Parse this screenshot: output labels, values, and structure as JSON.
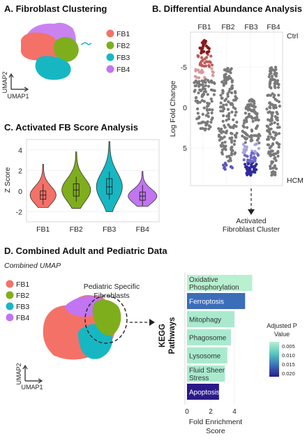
{
  "colors": {
    "fb1": "#f47168",
    "fb2": "#7fae1d",
    "fb3": "#16b7c2",
    "fb4": "#c275f0"
  },
  "panelA": {
    "title": "A. Fibroblast Clustering",
    "legend": [
      "FB1",
      "FB2",
      "FB3",
      "FB4"
    ],
    "axis_x": "UMAP1",
    "axis_y": "UMAP2"
  },
  "panelB": {
    "title": "B. Differential Abundance Analysis",
    "clusters": [
      "FB1",
      "FB2",
      "FB3",
      "FB4"
    ],
    "ylabel": "Log Fold Change",
    "yticks": [
      "-5",
      "0",
      "5"
    ],
    "top_label": "Ctrl",
    "bottom_label": "HCM",
    "annotation_line1": "Activated",
    "annotation_line2": "Fibroblast Cluster"
  },
  "panelC": {
    "title": "C. Activated FB Score Analysis",
    "ylabel": "Z Score",
    "yticks": [
      "4",
      "2",
      "0",
      "-2"
    ],
    "categories": [
      "FB1",
      "FB2",
      "FB3",
      "FB4"
    ]
  },
  "panelD": {
    "title": "D. Combined Adult and Pediatric Data",
    "subtitle": "Combined UMAP",
    "legend": [
      "FB1",
      "FB2",
      "FB3",
      "FB4"
    ],
    "axis_x": "UMAP1",
    "axis_y": "UMAP2",
    "callout_line1": "Pediatric Specific",
    "callout_line2": "Fibroblasts",
    "kegg_line1": "KEGG",
    "kegg_line2": "Pathways",
    "xlabel_line1": "Fold Enrichment",
    "xlabel_line2": "Score",
    "xticks": [
      "0",
      "2",
      "4"
    ],
    "colorbar_title_line1": "Adjusted P",
    "colorbar_title_line2": "Value",
    "colorbar_ticks": [
      "0.005",
      "0.010",
      "0.015",
      "0.020"
    ]
  },
  "chart_data": [
    {
      "type": "violin",
      "panel": "C",
      "title": "C. Activated FB Score Analysis",
      "ylabel": "Z Score",
      "ylim": [
        -3,
        5
      ],
      "categories": [
        "FB1",
        "FB2",
        "FB3",
        "FB4"
      ],
      "medians": [
        -0.4,
        0.1,
        0.4,
        -0.5
      ],
      "q1": [
        -0.8,
        -0.5,
        -0.3,
        -0.9
      ],
      "q3": [
        0.0,
        0.7,
        1.2,
        -0.1
      ],
      "max": [
        2.6,
        3.8,
        4.8,
        1.9
      ],
      "min": [
        -1.6,
        -1.7,
        -2.0,
        -1.5
      ]
    },
    {
      "type": "bar",
      "panel": "D",
      "orientation": "horizontal",
      "categories": [
        "Oxidative Phosphorylation",
        "Ferroptosis",
        "Mitophagy",
        "Phagosome",
        "Lysosome",
        "Fluid Sheer Stress",
        "Apoptosis"
      ],
      "values": [
        5.5,
        4.9,
        4.0,
        3.7,
        3.4,
        3.2,
        2.7
      ],
      "adjusted_p": [
        0.002,
        0.015,
        0.003,
        0.003,
        0.003,
        0.003,
        0.022
      ],
      "xlabel": "Fold Enrichment Score",
      "ylabel": "KEGG Pathways",
      "xlim": [
        0,
        6
      ]
    }
  ]
}
